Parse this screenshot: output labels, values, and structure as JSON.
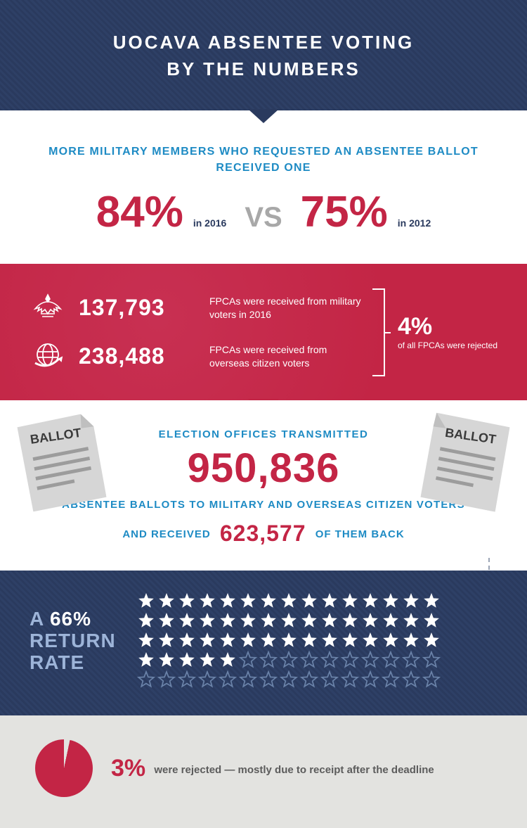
{
  "colors": {
    "navy": "#2a3a5e",
    "red": "#c32545",
    "blue_text": "#1e8bc4",
    "light_blue": "#9db4d8",
    "gray_bg": "#e3e3e0",
    "gray_text": "#5c5c5c",
    "vs_gray": "#a8a8a8",
    "white": "#ffffff"
  },
  "header": {
    "title_line1": "UOCAVA ABSENTEE VOTING",
    "title_line2": "BY THE NUMBERS"
  },
  "compare": {
    "subhead": "MORE MILITARY MEMBERS WHO REQUESTED AN ABSENTEE BALLOT RECEIVED ONE",
    "left_pct": "84%",
    "left_year": "in 2016",
    "vs": "VS",
    "right_pct": "75%",
    "right_year": "in 2012"
  },
  "fpca": {
    "row1_num": "137,793",
    "row1_text": "FPCAs were received from military voters in 2016",
    "row2_num": "238,488",
    "row2_text": "FPCAs were received from overseas citizen voters",
    "reject_pct": "4%",
    "reject_text": "of all FPCAs were rejected"
  },
  "ballots": {
    "t1": "ELECTION OFFICES TRANSMITTED",
    "transmitted": "950,836",
    "t2": "ABSENTEE BALLOTS TO MILITARY AND OVERSEAS CITIZEN VOTERS",
    "r2_a": "AND RECEIVED",
    "received": "623,577",
    "r2_b": "OF THEM BACK",
    "paper_label": "BALLOT"
  },
  "return_rate": {
    "prefix": "A",
    "pct": "66%",
    "line2a": "RETURN",
    "line2b": "RATE",
    "stars_total": 75,
    "stars_filled": 50,
    "stars_per_row": 15,
    "star_fill": "#ffffff",
    "star_outline": "#6a82a8"
  },
  "rejected": {
    "pct": "3%",
    "text": "were rejected — mostly due to receipt after the deadline",
    "pie_pct": 3
  }
}
